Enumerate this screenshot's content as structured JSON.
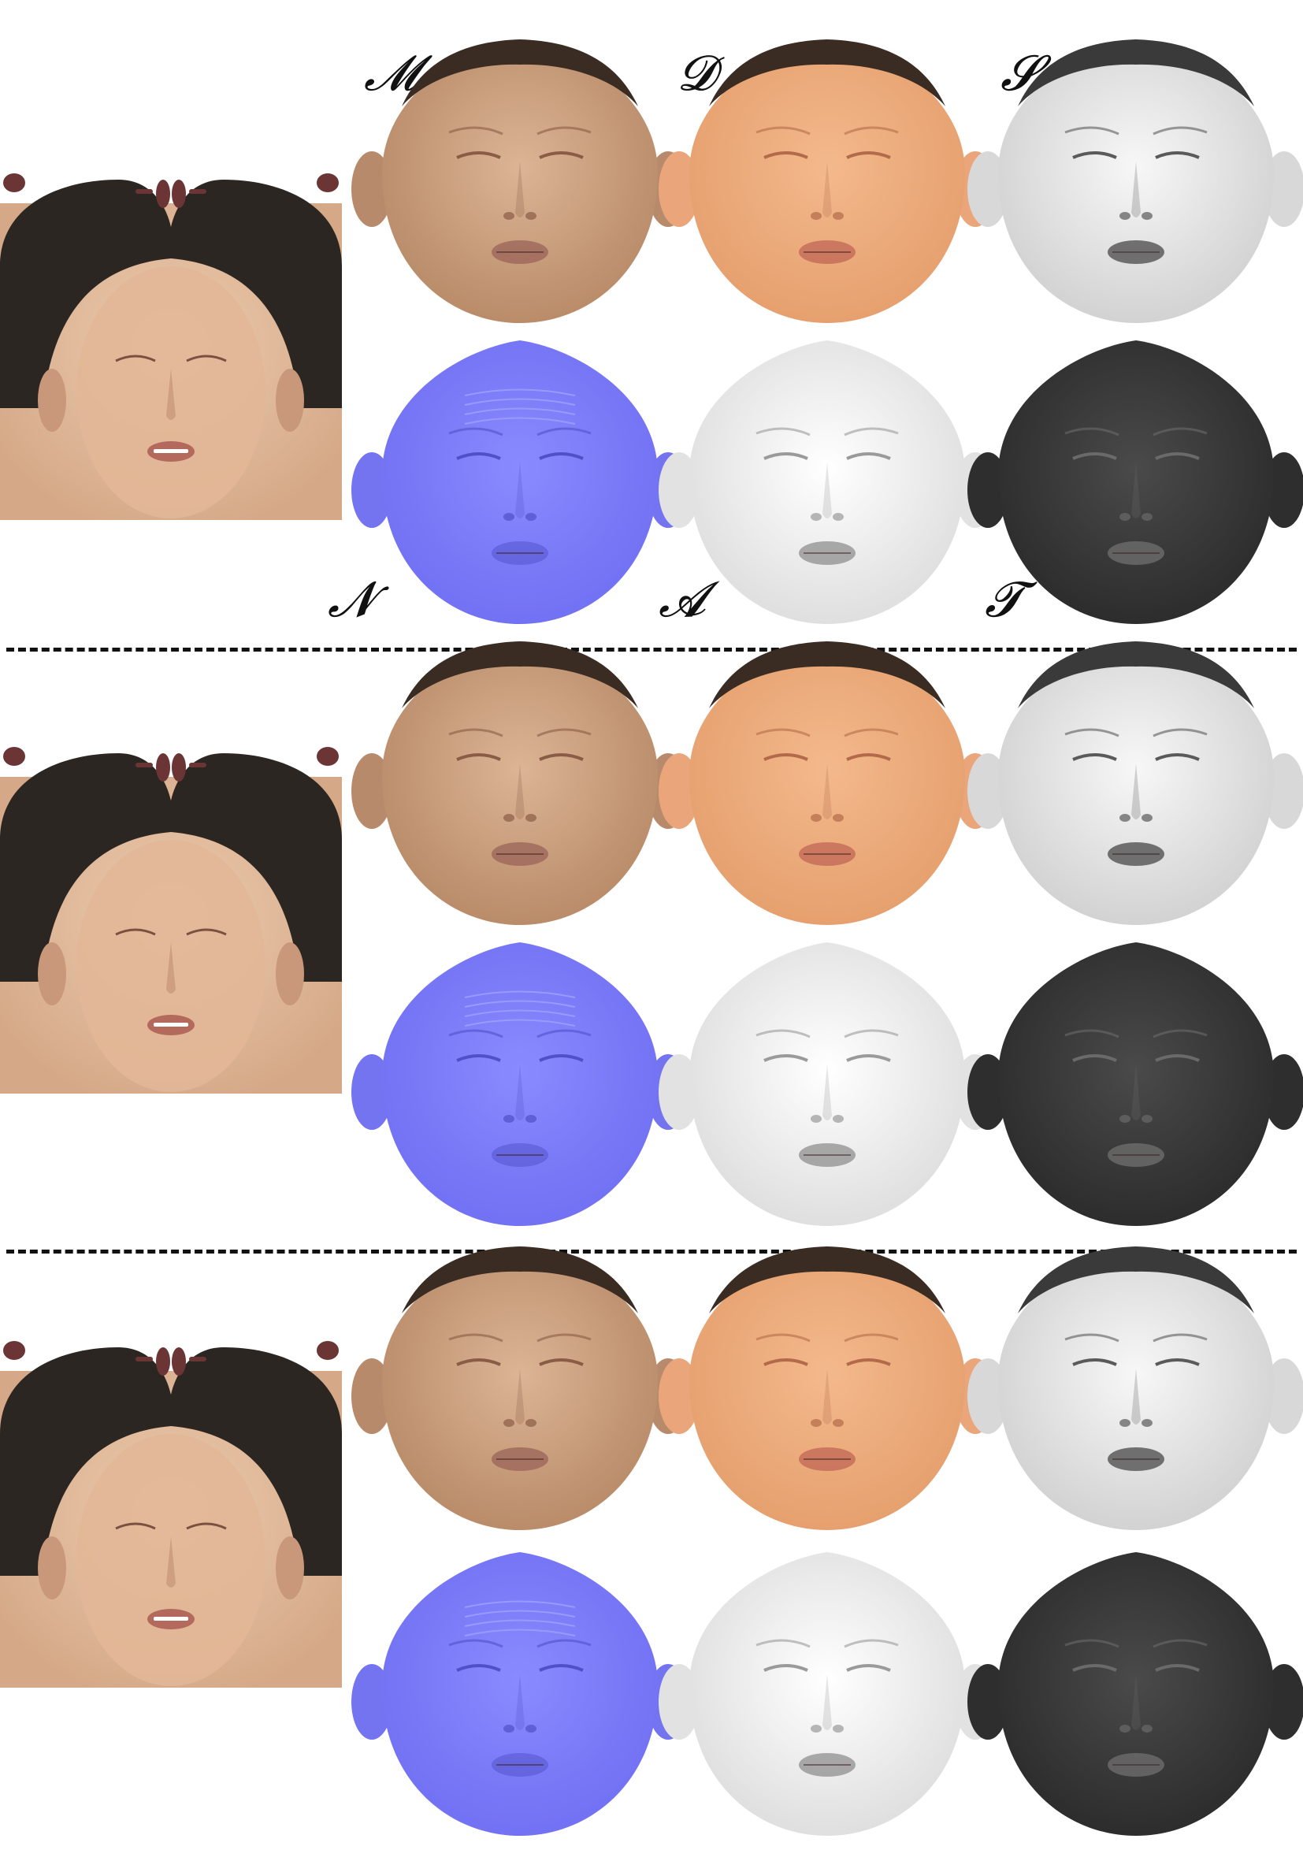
{
  "labels": {
    "mesh": "𝓜",
    "diffuse": "𝓓",
    "specular": "𝓢",
    "normal": "𝓝",
    "ambient": "𝓐",
    "translucency": "𝓣"
  },
  "colors": {
    "skin_light": "#e6c2a2",
    "skin_mid": "#c89a78",
    "diffuse_orange": "#eeae80",
    "normal_blue": "#8080ff",
    "specular_light": "#e8e8e8",
    "ambient_white": "#f2f2f2",
    "translucency_dark": "#3e3e3e",
    "hair": "#2b2622",
    "eye_socket": "#6b3535"
  }
}
